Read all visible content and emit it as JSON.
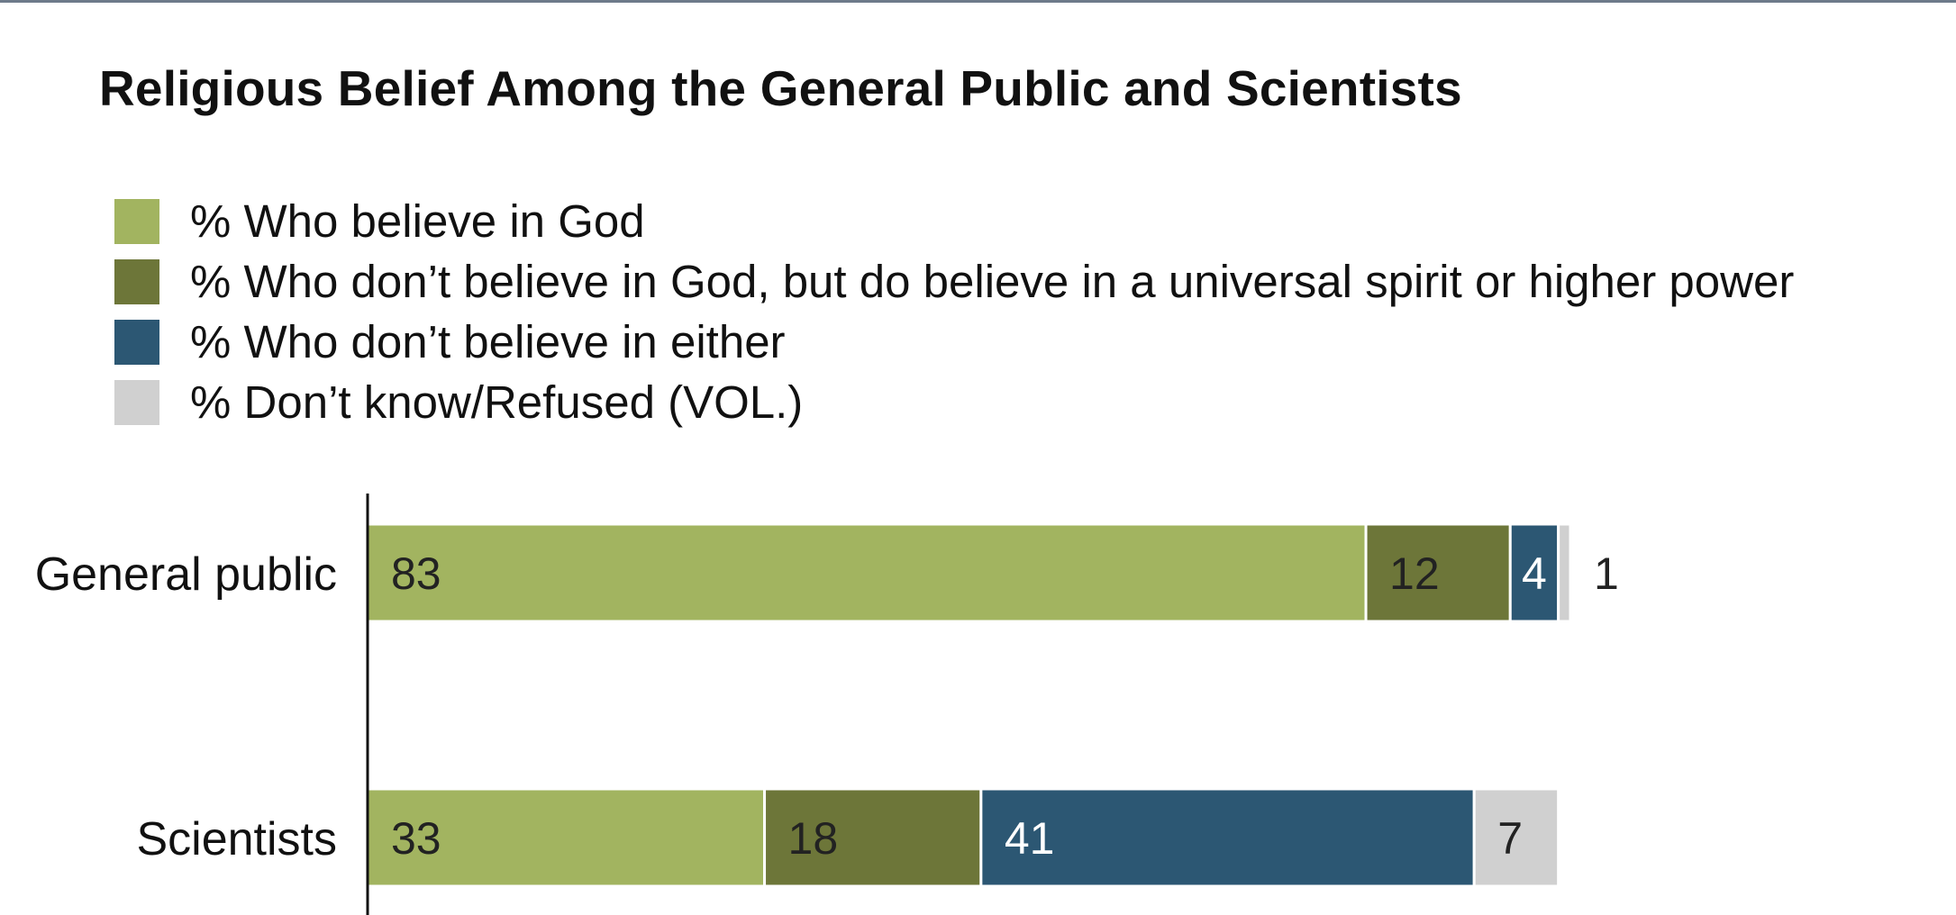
{
  "chart_data": {
    "type": "bar",
    "orientation": "horizontal",
    "stacked": true,
    "title": "Religious Belief Among the General Public and Scientists",
    "categories": [
      "General public",
      "Scientists"
    ],
    "series": [
      {
        "name": "% Who believe in God",
        "values": [
          83,
          33
        ],
        "color": "#a2b460",
        "label_color": "#222222"
      },
      {
        "name": "% Who don’t believe in God, but do believe in a universal spirit or higher power",
        "values": [
          12,
          18
        ],
        "color": "#6d7639",
        "label_color": "#222222"
      },
      {
        "name": "% Who don’t believe in either",
        "values": [
          4,
          41
        ],
        "color": "#2c5773",
        "label_color": "#ffffff"
      },
      {
        "name": "% Don’t know/Refused (VOL.)",
        "values": [
          1,
          7
        ],
        "color": "#d0d0d0",
        "label_color": "#222222"
      }
    ],
    "data_labels": [
      [
        "83",
        "12",
        "4",
        "1"
      ],
      [
        "33",
        "18",
        "41",
        "7"
      ]
    ],
    "xlim": [
      0,
      100
    ],
    "xlabel": "",
    "ylabel": "",
    "grid": false,
    "legend_position": "top-left"
  }
}
